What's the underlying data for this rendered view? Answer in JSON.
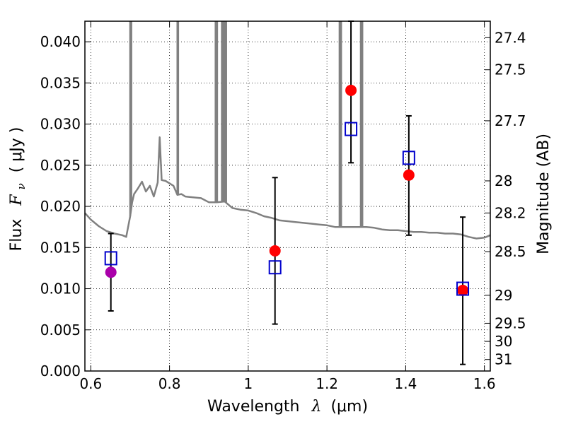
{
  "chart_data": {
    "type": "scatter",
    "title": "",
    "xlabel": "Wavelength",
    "xlabel_symbol": "λ",
    "xlabel_unit": "(μm)",
    "ylabel": "Flux",
    "ylabel_symbol": "F",
    "ylabel_subscript": "ν",
    "ylabel_unit": "( μJy )",
    "y2label": "Magnitude (AB)",
    "xlim": [
      0.585,
      1.615
    ],
    "ylim": [
      0.0,
      0.0425
    ],
    "xticks": [
      0.6,
      0.8,
      1.0,
      1.2,
      1.4,
      1.6
    ],
    "xtick_labels": [
      "0.6",
      "0.8",
      "1",
      "1.2",
      "1.4",
      "1.6"
    ],
    "yticks": [
      0.0,
      0.005,
      0.01,
      0.015,
      0.02,
      0.025,
      0.03,
      0.035,
      0.04
    ],
    "ytick_labels": [
      "0.000",
      "0.005",
      "0.010",
      "0.015",
      "0.020",
      "0.025",
      "0.030",
      "0.035",
      "0.040"
    ],
    "mag_ticks": [
      {
        "label": "27.4",
        "flux": 0.0405
      },
      {
        "label": "27.5",
        "flux": 0.0366
      },
      {
        "label": "27.7",
        "flux": 0.0304
      },
      {
        "label": "28",
        "flux": 0.0231
      },
      {
        "label": "28.2",
        "flux": 0.0192
      },
      {
        "label": "28.5",
        "flux": 0.0145
      },
      {
        "label": "29",
        "flux": 0.0092
      },
      {
        "label": "29.5",
        "flux": 0.0058
      },
      {
        "label": "30",
        "flux": 0.0036
      },
      {
        "label": "31",
        "flux": 0.0014
      }
    ],
    "grid": true,
    "colors": {
      "model": "#808080",
      "observed": "#ff0000",
      "observed_first": "#aa00aa",
      "model_box": "#0000cc",
      "errorbar": "#000000"
    },
    "series": [
      {
        "x": [
          0.585,
          0.6,
          0.62,
          0.64,
          0.66,
          0.68,
          0.69,
          0.7,
          0.705,
          0.71,
          0.72,
          0.73,
          0.74,
          0.75,
          0.76,
          0.77,
          0.775,
          0.78,
          0.79,
          0.8,
          0.81,
          0.82,
          0.83,
          0.84,
          0.86,
          0.88,
          0.9,
          0.92,
          0.94,
          0.96,
          0.98,
          1.0,
          1.02,
          1.04,
          1.06,
          1.08,
          1.1,
          1.12,
          1.14,
          1.16,
          1.18,
          1.2,
          1.22,
          1.24,
          1.26,
          1.28,
          1.3,
          1.32,
          1.34,
          1.36,
          1.38,
          1.4,
          1.42,
          1.44,
          1.46,
          1.48,
          1.5,
          1.52,
          1.54,
          1.56,
          1.58,
          1.6,
          1.615
        ],
        "y": [
          0.0192,
          0.0184,
          0.0176,
          0.017,
          0.0167,
          0.0165,
          0.0163,
          0.0188,
          0.0205,
          0.0215,
          0.0222,
          0.023,
          0.0218,
          0.0225,
          0.0212,
          0.0229,
          0.0284,
          0.0232,
          0.0231,
          0.0228,
          0.0225,
          0.0214,
          0.0215,
          0.0212,
          0.0211,
          0.021,
          0.0205,
          0.0205,
          0.0206,
          0.0198,
          0.0196,
          0.0195,
          0.0192,
          0.0188,
          0.0186,
          0.0183,
          0.0182,
          0.0181,
          0.018,
          0.0179,
          0.0178,
          0.0177,
          0.0175,
          0.0175,
          0.0175,
          0.0175,
          0.0175,
          0.0174,
          0.0172,
          0.0171,
          0.0171,
          0.017,
          0.0169,
          0.0169,
          0.0168,
          0.0168,
          0.0167,
          0.0167,
          0.0166,
          0.0163,
          0.0161,
          0.0162,
          0.0165
        ]
      },
      {
        "points": [
          {
            "x": 0.651,
            "y": 0.012
          },
          {
            "x": 1.068,
            "y": 0.0146
          },
          {
            "x": 1.261,
            "y": 0.0341
          },
          {
            "x": 1.408,
            "y": 0.0238
          },
          {
            "x": 1.545,
            "y": 0.0098
          }
        ]
      },
      {
        "points": [
          {
            "x": 0.651,
            "y": 0.0137
          },
          {
            "x": 1.068,
            "y": 0.0126
          },
          {
            "x": 1.261,
            "y": 0.0294
          },
          {
            "x": 1.408,
            "y": 0.0259
          },
          {
            "x": 1.545,
            "y": 0.01
          }
        ]
      },
      {
        "points": [
          {
            "x": 0.651,
            "low": 0.0073,
            "high": 0.0167
          },
          {
            "x": 1.068,
            "low": 0.0057,
            "high": 0.0235
          },
          {
            "x": 1.261,
            "low": 0.0253,
            "high": 0.0425
          },
          {
            "x": 1.408,
            "low": 0.0165,
            "high": 0.031
          },
          {
            "x": 1.545,
            "low": 0.0008,
            "high": 0.0187
          }
        ]
      }
    ],
    "spikes": [
      {
        "x": 0.7,
        "top": 0.0425
      },
      {
        "x": 0.703,
        "top": 0.0425
      },
      {
        "x": 0.82,
        "top": 0.0425
      },
      {
        "x": 0.822,
        "top": 0.0425
      },
      {
        "x": 0.917,
        "top": 0.0425
      },
      {
        "x": 0.921,
        "top": 0.0425
      },
      {
        "x": 0.933,
        "top": 0.0425
      },
      {
        "x": 0.936,
        "top": 0.0425
      },
      {
        "x": 0.94,
        "top": 0.0425
      },
      {
        "x": 0.944,
        "top": 0.0425
      },
      {
        "x": 1.232,
        "top": 0.0425
      },
      {
        "x": 1.236,
        "top": 0.0425
      },
      {
        "x": 1.286,
        "top": 0.0425
      },
      {
        "x": 1.29,
        "top": 0.0425
      }
    ]
  }
}
